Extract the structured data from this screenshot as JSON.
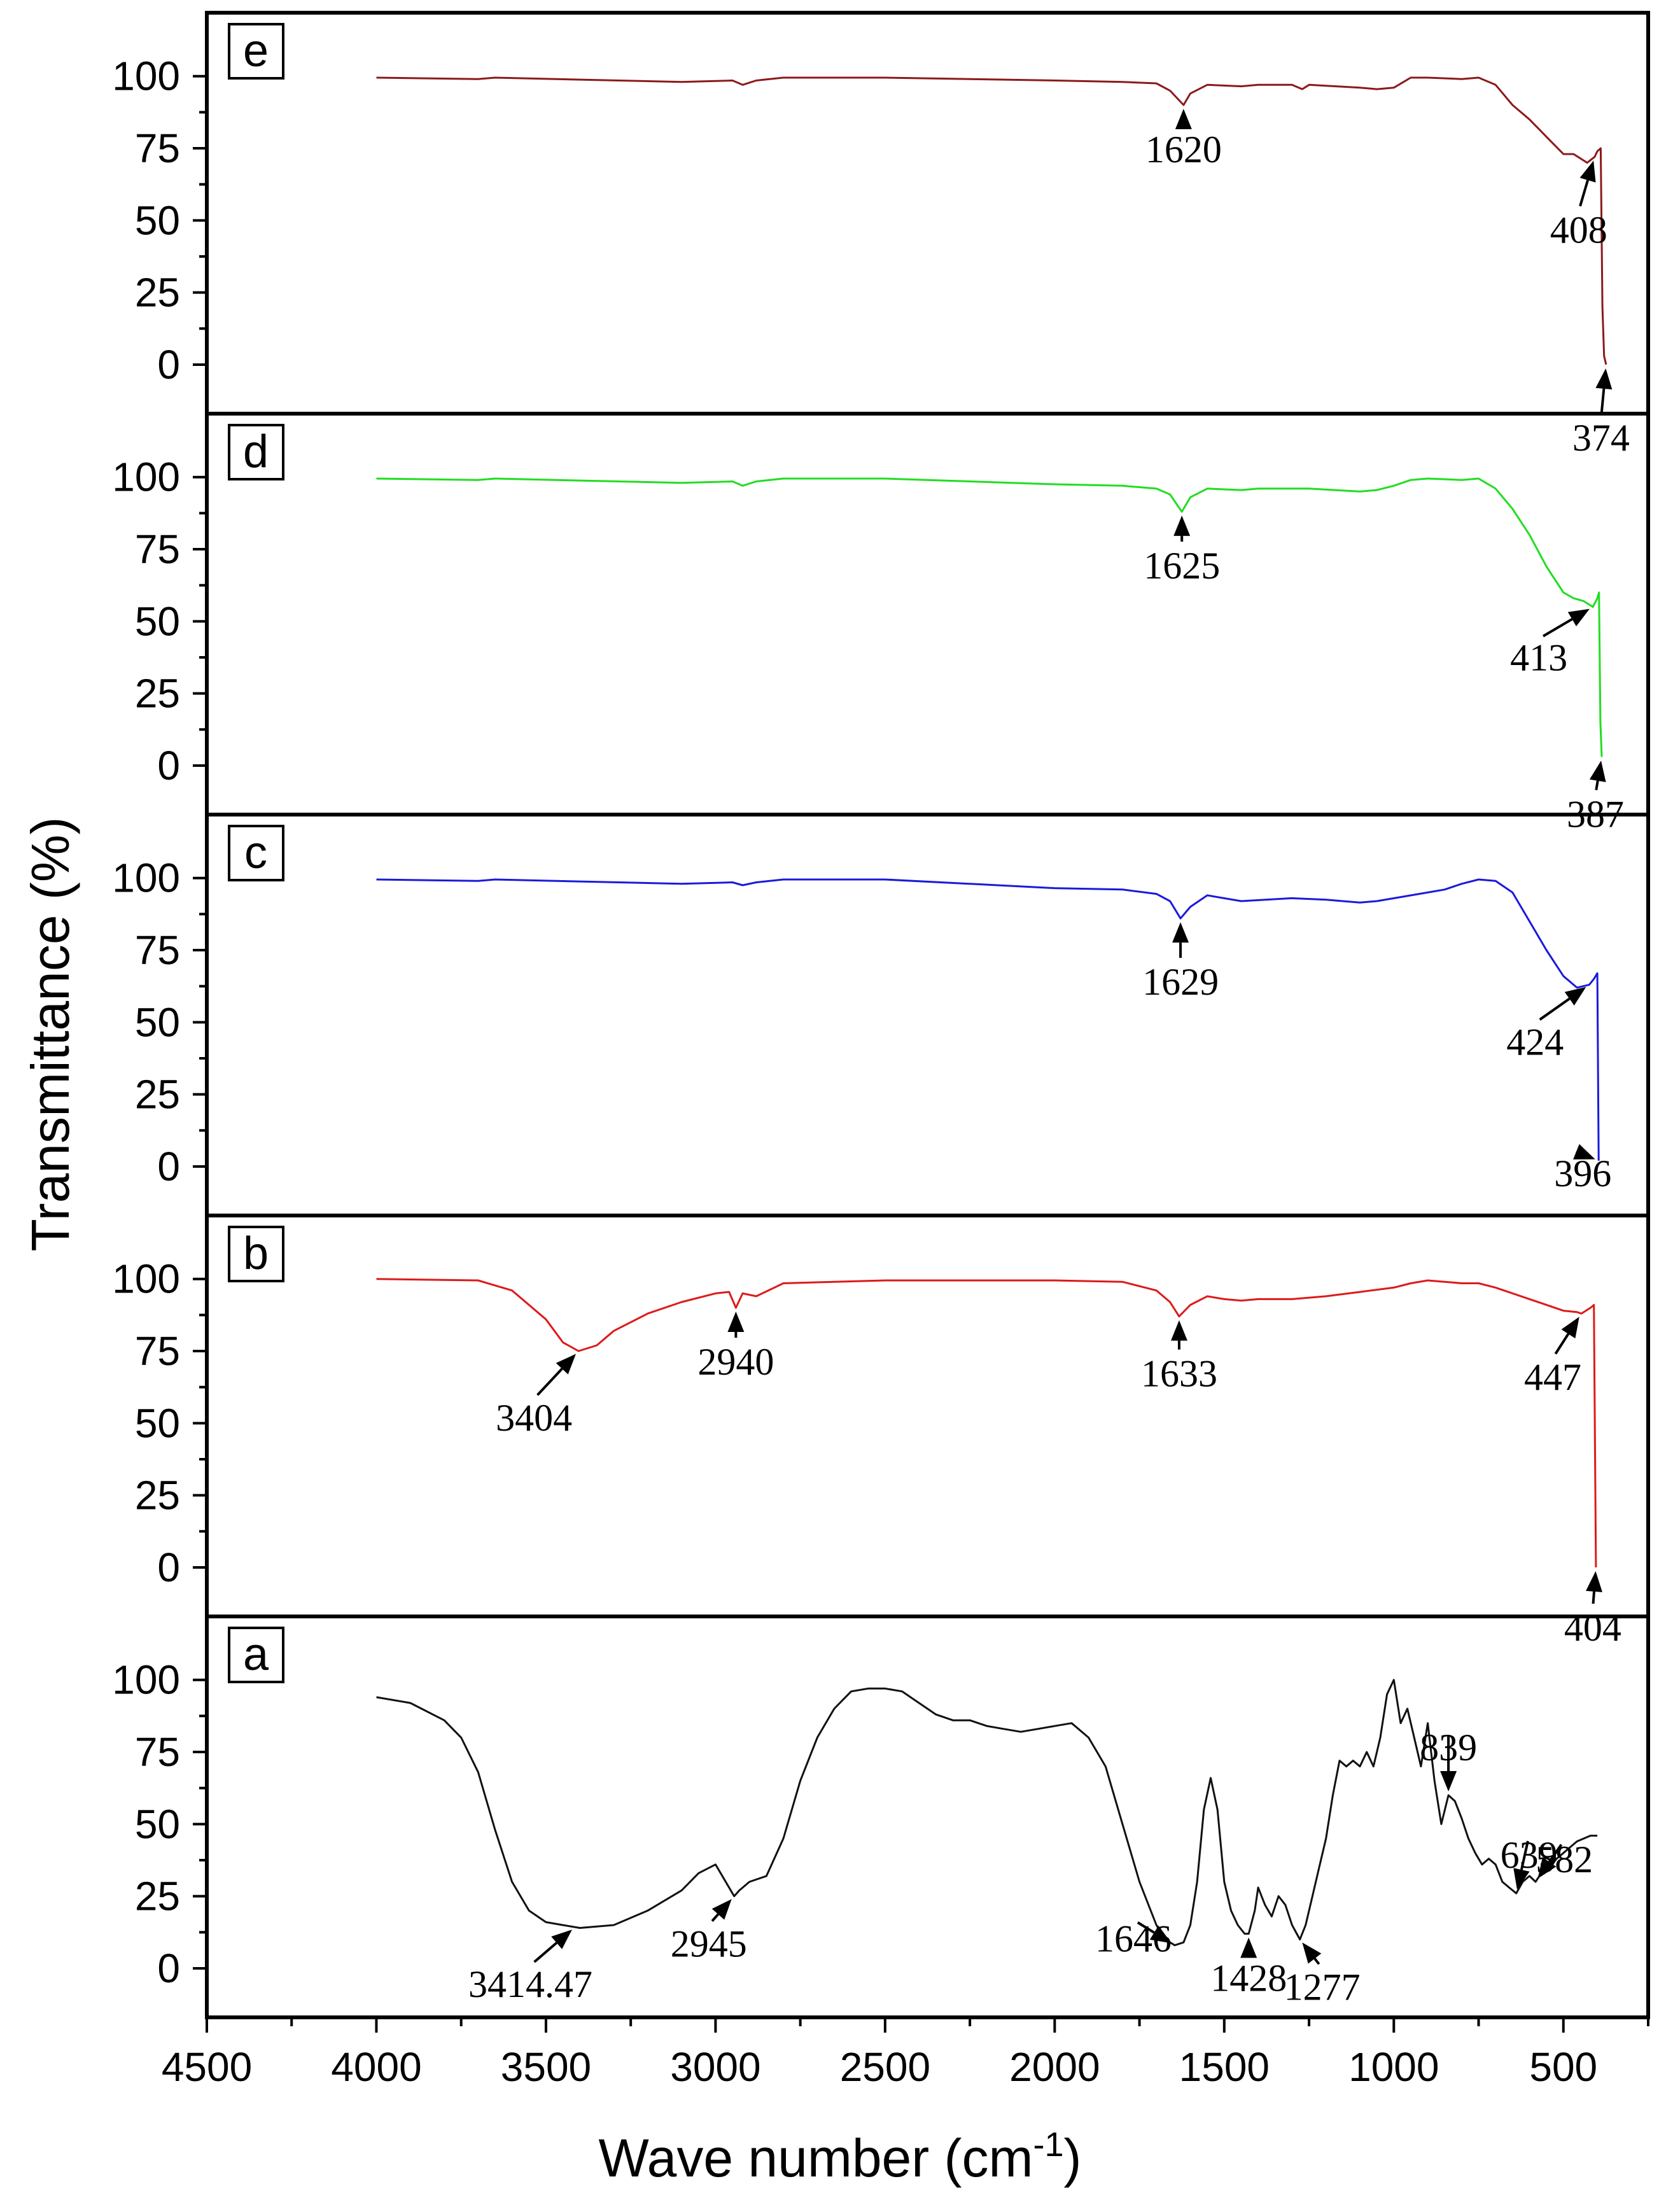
{
  "chart_data": {
    "type": "line",
    "title": "",
    "xlabel": "Wave number (cm",
    "xlabel_sup": "-1",
    "xlabel_close": ")",
    "ylabel": "Transmittance (%)",
    "xlim": [
      4500,
      250
    ],
    "x_ticks": [
      "4500",
      "4000",
      "3500",
      "3000",
      "2500",
      "2000",
      "1500",
      "1000",
      "500"
    ],
    "ylim": [
      -17,
      122
    ],
    "y_ticks": [
      "0",
      "25",
      "50",
      "75",
      "100"
    ],
    "grid": false,
    "panels": [
      {
        "label": "e",
        "color": "#8b1a1a",
        "x": [
          4000,
          3700,
          3650,
          3100,
          2950,
          2920,
          2880,
          2800,
          2500,
          2000,
          1800,
          1700,
          1660,
          1620,
          1600,
          1550,
          1450,
          1400,
          1300,
          1270,
          1250,
          1100,
          1050,
          1000,
          950,
          900,
          800,
          750,
          700,
          650,
          600,
          550,
          500,
          470,
          430,
          408,
          400,
          390,
          385,
          380,
          374
        ],
        "y": [
          99.5,
          99,
          99.5,
          98,
          98.5,
          97,
          98.5,
          99.5,
          99.5,
          98.5,
          98,
          97.5,
          95,
          90,
          94,
          97,
          96.5,
          97,
          97,
          95.5,
          97,
          96,
          95.5,
          96,
          99.5,
          99.5,
          99,
          99.5,
          97,
          90,
          85,
          79,
          73,
          73,
          70,
          72,
          74,
          75,
          20,
          3,
          0
        ],
        "annotations": [
          {
            "text": "1620",
            "x": 1620
          },
          {
            "text": "408",
            "x": 408
          },
          {
            "text": "374",
            "x": 374
          }
        ]
      },
      {
        "label": "d",
        "color": "#22dd22",
        "x": [
          4000,
          3700,
          3650,
          3100,
          2950,
          2920,
          2880,
          2800,
          2500,
          2000,
          1800,
          1700,
          1660,
          1625,
          1600,
          1550,
          1450,
          1400,
          1300,
          1250,
          1100,
          1050,
          1000,
          950,
          900,
          800,
          750,
          700,
          650,
          600,
          550,
          500,
          470,
          440,
          413,
          400,
          395,
          391,
          387
        ],
        "y": [
          99.5,
          99,
          99.5,
          98,
          98.5,
          97,
          98.5,
          99.5,
          99.5,
          97.5,
          97,
          96,
          94,
          88,
          93,
          96,
          95.5,
          96,
          96,
          96,
          95,
          95.5,
          97,
          99,
          99.5,
          99,
          99.5,
          96,
          89,
          80,
          69,
          60,
          58,
          57,
          55,
          58,
          60,
          15,
          3
        ],
        "annotations": [
          {
            "text": "1625",
            "x": 1625
          },
          {
            "text": "413",
            "x": 413
          },
          {
            "text": "387",
            "x": 387
          }
        ]
      },
      {
        "label": "c",
        "color": "#1a1adc",
        "x": [
          4000,
          3700,
          3650,
          3100,
          2950,
          2920,
          2880,
          2800,
          2500,
          2000,
          1800,
          1700,
          1660,
          1629,
          1600,
          1550,
          1450,
          1300,
          1200,
          1100,
          1050,
          900,
          850,
          800,
          750,
          700,
          650,
          600,
          550,
          500,
          460,
          424,
          410,
          400,
          396
        ],
        "y": [
          99.5,
          99,
          99.5,
          98,
          98.5,
          97.5,
          98.5,
          99.5,
          99.5,
          96.5,
          96,
          94.5,
          92,
          86,
          90,
          94,
          92,
          93,
          92.5,
          91.5,
          92,
          95,
          96,
          98,
          99.5,
          99,
          95,
          85,
          75,
          66,
          62,
          63,
          65,
          67,
          2
        ],
        "annotations": [
          {
            "text": "1629",
            "x": 1629
          },
          {
            "text": "424",
            "x": 424
          },
          {
            "text": "396",
            "x": 396
          }
        ]
      },
      {
        "label": "b",
        "color": "#dd1a1a",
        "x": [
          4000,
          3700,
          3600,
          3500,
          3450,
          3404,
          3350,
          3300,
          3200,
          3100,
          3000,
          2960,
          2940,
          2920,
          2880,
          2800,
          2500,
          2000,
          1800,
          1700,
          1660,
          1633,
          1600,
          1550,
          1500,
          1450,
          1400,
          1300,
          1200,
          1100,
          1000,
          950,
          900,
          850,
          800,
          750,
          700,
          600,
          500,
          460,
          447,
          420,
          410,
          404
        ],
        "y": [
          100,
          99.5,
          96,
          86,
          78,
          75,
          77,
          82,
          88,
          92,
          95,
          95.5,
          90,
          95,
          94,
          98.5,
          99.5,
          99.5,
          99,
          96,
          92,
          87,
          91,
          94,
          93,
          92.5,
          93,
          93,
          94,
          95.5,
          97,
          98.5,
          99.5,
          99,
          98.5,
          98.5,
          97,
          93,
          89,
          88.5,
          88,
          90,
          91,
          0
        ],
        "annotations": [
          {
            "text": "3404",
            "x": 3404
          },
          {
            "text": "2940",
            "x": 2940
          },
          {
            "text": "1633",
            "x": 1633
          },
          {
            "text": "447",
            "x": 447
          },
          {
            "text": "404",
            "x": 404
          }
        ]
      },
      {
        "label": "a",
        "color": "#111111",
        "x": [
          4000,
          3900,
          3800,
          3750,
          3700,
          3650,
          3600,
          3550,
          3500,
          3450,
          3400,
          3300,
          3200,
          3100,
          3050,
          3000,
          2960,
          2945,
          2930,
          2900,
          2850,
          2800,
          2750,
          2700,
          2650,
          2600,
          2550,
          2500,
          2450,
          2400,
          2350,
          2300,
          2250,
          2200,
          2150,
          2100,
          2050,
          2000,
          1950,
          1900,
          1850,
          1800,
          1750,
          1700,
          1680,
          1660,
          1646,
          1620,
          1600,
          1580,
          1560,
          1540,
          1520,
          1500,
          1480,
          1460,
          1440,
          1428,
          1410,
          1400,
          1380,
          1360,
          1340,
          1320,
          1300,
          1277,
          1260,
          1240,
          1220,
          1200,
          1180,
          1160,
          1140,
          1120,
          1100,
          1080,
          1060,
          1040,
          1020,
          1000,
          980,
          960,
          940,
          920,
          900,
          880,
          860,
          839,
          820,
          800,
          780,
          760,
          740,
          720,
          700,
          680,
          660,
          639,
          620,
          600,
          582,
          560,
          540,
          520,
          500,
          480,
          460,
          440,
          420,
          400
        ],
        "y": [
          94,
          92,
          86,
          80,
          68,
          48,
          30,
          20,
          16,
          15,
          14,
          15,
          20,
          27,
          33,
          36,
          28,
          25,
          27,
          30,
          32,
          45,
          65,
          80,
          90,
          96,
          97,
          97,
          96,
          92,
          88,
          86,
          86,
          84,
          83,
          82,
          83,
          84,
          85,
          80,
          70,
          50,
          30,
          15,
          11,
          9,
          8,
          9,
          15,
          30,
          55,
          66,
          55,
          30,
          20,
          15,
          12,
          12,
          20,
          28,
          22,
          18,
          25,
          22,
          15,
          10,
          15,
          25,
          35,
          45,
          60,
          72,
          70,
          72,
          70,
          75,
          70,
          80,
          95,
          100,
          85,
          90,
          80,
          70,
          85,
          65,
          50,
          60,
          58,
          52,
          45,
          40,
          36,
          38,
          36,
          30,
          28,
          26,
          30,
          32,
          30,
          34,
          35,
          38,
          40,
          42,
          44,
          45,
          46,
          46
        ],
        "annotations": [
          {
            "text": "3414.47",
            "x": 3414.47
          },
          {
            "text": "2945",
            "x": 2945
          },
          {
            "text": "1646",
            "x": 1646
          },
          {
            "text": "1428",
            "x": 1428
          },
          {
            "text": "1277",
            "x": 1277
          },
          {
            "text": "839",
            "x": 839
          },
          {
            "text": "639",
            "x": 639
          },
          {
            "text": "582",
            "x": 582
          }
        ]
      }
    ]
  }
}
